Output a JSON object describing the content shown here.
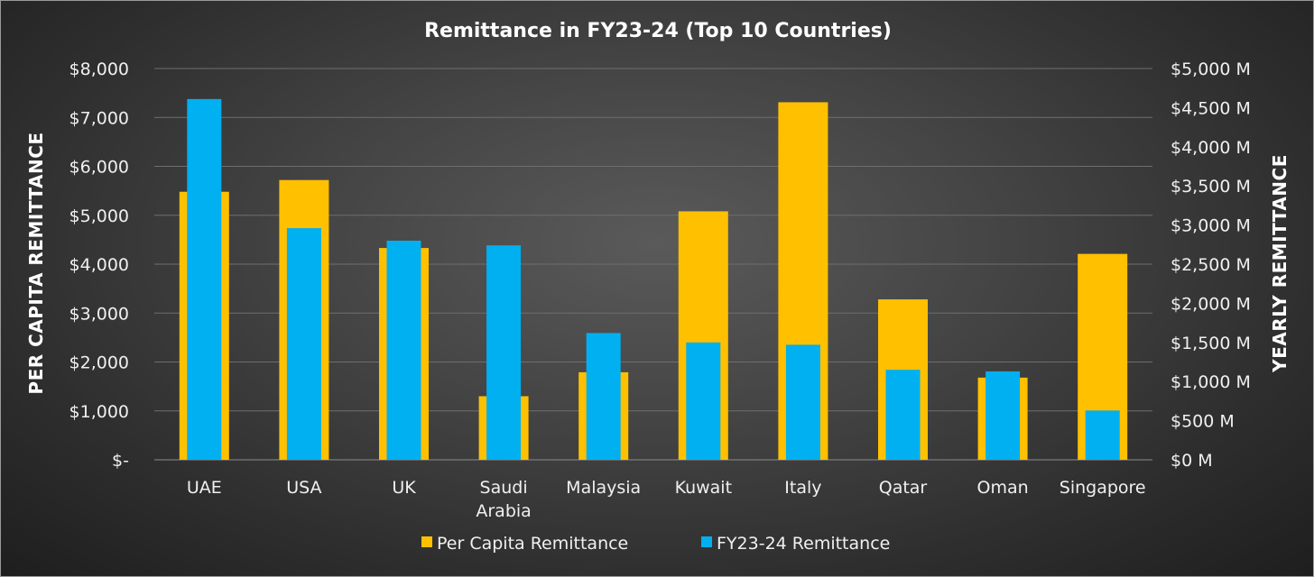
{
  "chart_data": {
    "type": "bar",
    "title": "Remittance in FY23-24 (Top 10 Countries)",
    "ylabel_left": "PER CAPITA REMITTANCE",
    "ylabel_right": "YEARLY REMITTANCE",
    "categories": [
      [
        "UAE"
      ],
      [
        "USA"
      ],
      [
        "UK"
      ],
      [
        "Saudi",
        "Arabia"
      ],
      [
        "Malaysia"
      ],
      [
        "Kuwait"
      ],
      [
        "Italy"
      ],
      [
        "Qatar"
      ],
      [
        "Oman"
      ],
      [
        "Singapore"
      ]
    ],
    "left_axis": {
      "ylim": [
        0,
        8000
      ],
      "ticks": [
        0,
        1000,
        2000,
        3000,
        4000,
        5000,
        6000,
        7000,
        8000
      ],
      "tick_labels": [
        "$-",
        "$1,000",
        "$2,000",
        "$3,000",
        "$4,000",
        "$5,000",
        "$6,000",
        "$7,000",
        "$8,000"
      ]
    },
    "right_axis": {
      "ylim": [
        0,
        5000
      ],
      "ticks": [
        0,
        500,
        1000,
        1500,
        2000,
        2500,
        3000,
        3500,
        4000,
        4500,
        5000
      ],
      "tick_labels": [
        "$0 M",
        "$500 M",
        "$1,000 M",
        "$1,500 M",
        "$2,000 M",
        "$2,500 M",
        "$3,000 M",
        "$3,500 M",
        "$4,000 M",
        "$4,500 M",
        "$5,000 M"
      ]
    },
    "series": [
      {
        "name": "Per Capita Remittance",
        "axis": "left",
        "color": "#FFC000",
        "values": [
          5480,
          5720,
          4330,
          1300,
          1790,
          5080,
          7310,
          3280,
          1680,
          4210
        ]
      },
      {
        "name": "FY23-24 Remittance",
        "axis": "right",
        "color": "#00B0F0",
        "values": [
          4610,
          2960,
          2800,
          2740,
          1620,
          1500,
          1470,
          1150,
          1130,
          630
        ]
      }
    ],
    "grid": true,
    "legend_position": "bottom"
  }
}
